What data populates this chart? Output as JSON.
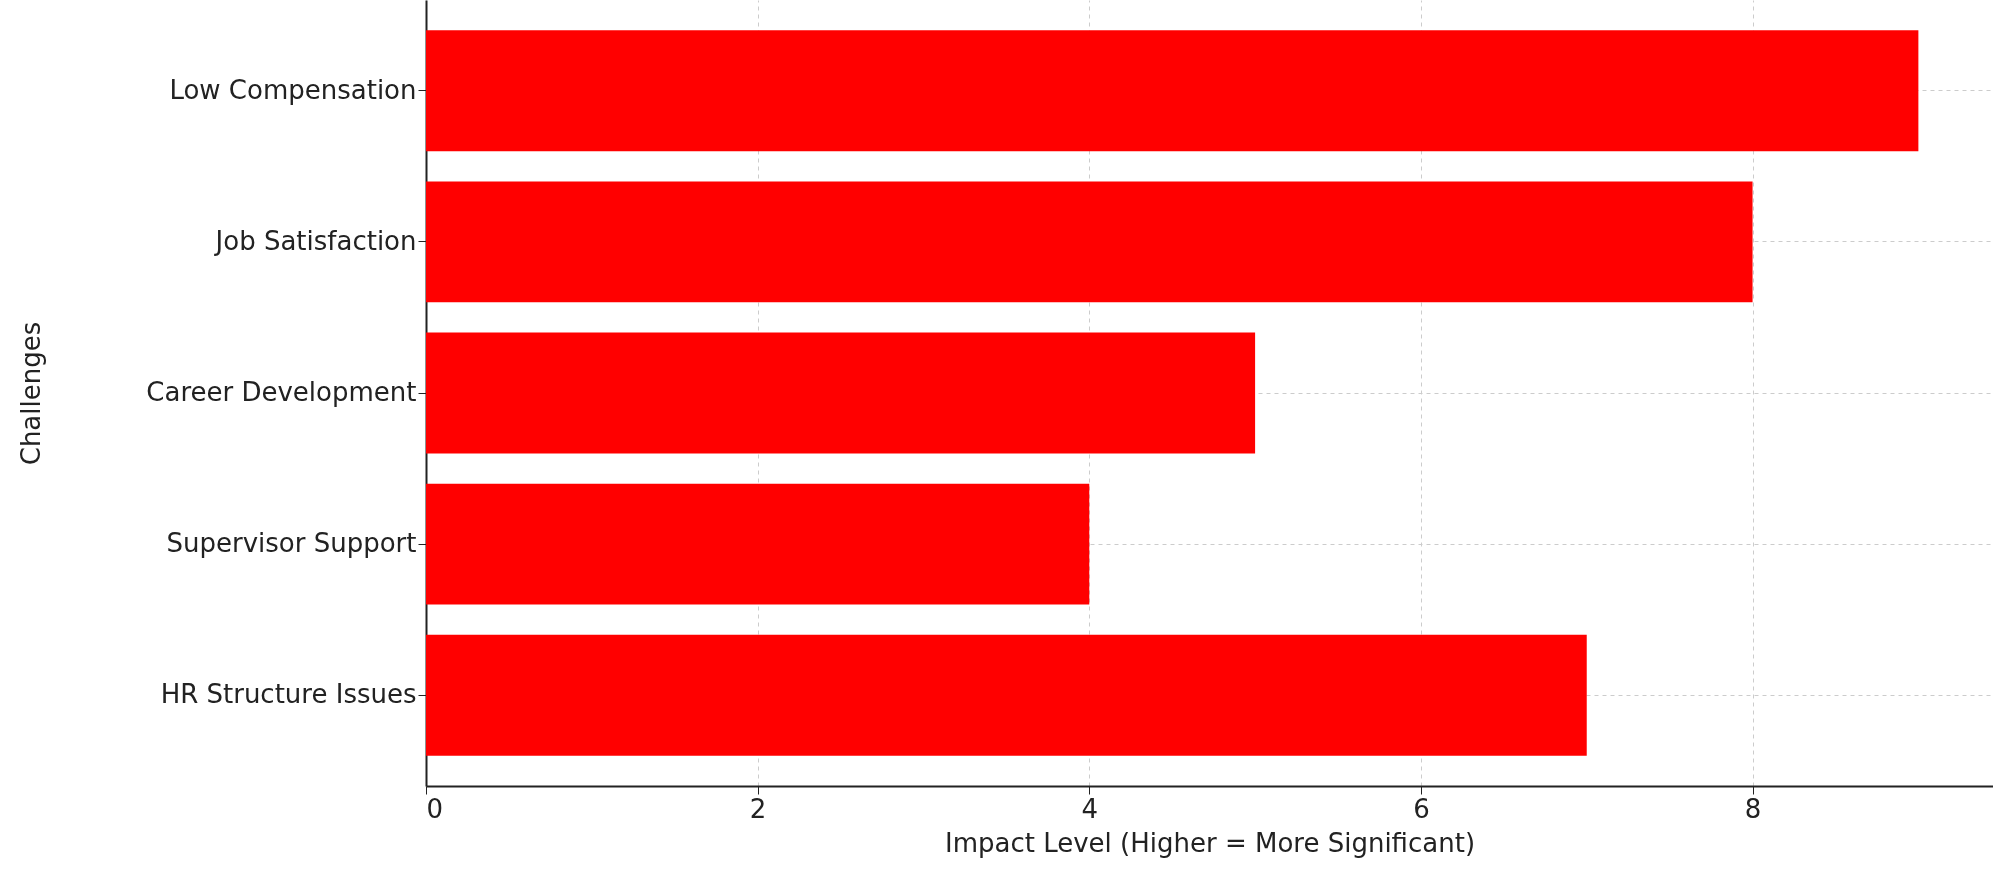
{
  "chart_data": {
    "type": "bar",
    "orientation": "horizontal",
    "xlabel": "Impact Level (Higher = More Significant)",
    "ylabel": "Challenges",
    "categories": [
      "Low Compensation",
      "Job Satisfaction",
      "Career Development",
      "Supervisor Support",
      "HR Structure Issues"
    ],
    "values": [
      9,
      8,
      5,
      4,
      7
    ],
    "color": "#ff0000",
    "xlim": [
      0,
      9.45
    ],
    "xticks": [
      0,
      2,
      4,
      6,
      8
    ],
    "grid": true
  }
}
